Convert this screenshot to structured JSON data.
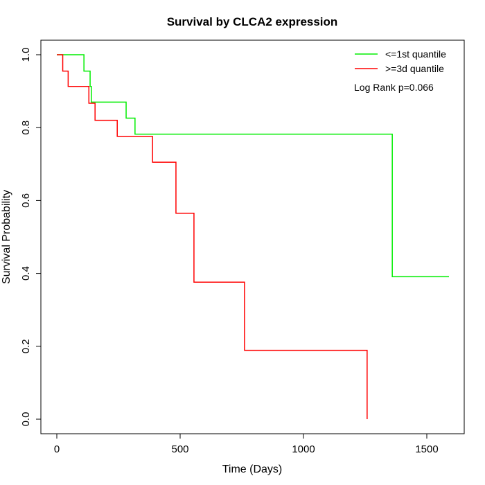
{
  "chart_data": {
    "type": "line",
    "subtype": "kaplan-meier step",
    "title": "Survival by CLCA2 expression",
    "xlabel": "Time (Days)",
    "ylabel": "Survival Probability",
    "xlim": [
      0,
      1650
    ],
    "ylim": [
      0,
      1.0
    ],
    "xticks": [
      0,
      500,
      1000,
      1500
    ],
    "yticks": [
      0.0,
      0.2,
      0.4,
      0.6,
      0.8,
      1.0
    ],
    "ytick_labels": [
      "0.0",
      "0.2",
      "0.4",
      "0.6",
      "0.8",
      "1.0"
    ],
    "grid": false,
    "legend_position": "top-right",
    "annotation": "Log Rank p=0.066",
    "series": [
      {
        "name": "<=1st quantile",
        "color": "#00ee00",
        "x": [
          0,
          110,
          135,
          140,
          281,
          317,
          1360,
          1590
        ],
        "y": [
          1.0,
          0.955,
          0.913,
          0.87,
          0.826,
          0.782,
          0.391,
          0.391
        ]
      },
      {
        "name": ">=3d quantile",
        "color": "#ff0000",
        "x": [
          0,
          24,
          46,
          130,
          155,
          245,
          388,
          483,
          556,
          761,
          1258
        ],
        "y": [
          1.0,
          0.955,
          0.913,
          0.867,
          0.82,
          0.776,
          0.705,
          0.565,
          0.376,
          0.189,
          0.0
        ]
      }
    ]
  }
}
